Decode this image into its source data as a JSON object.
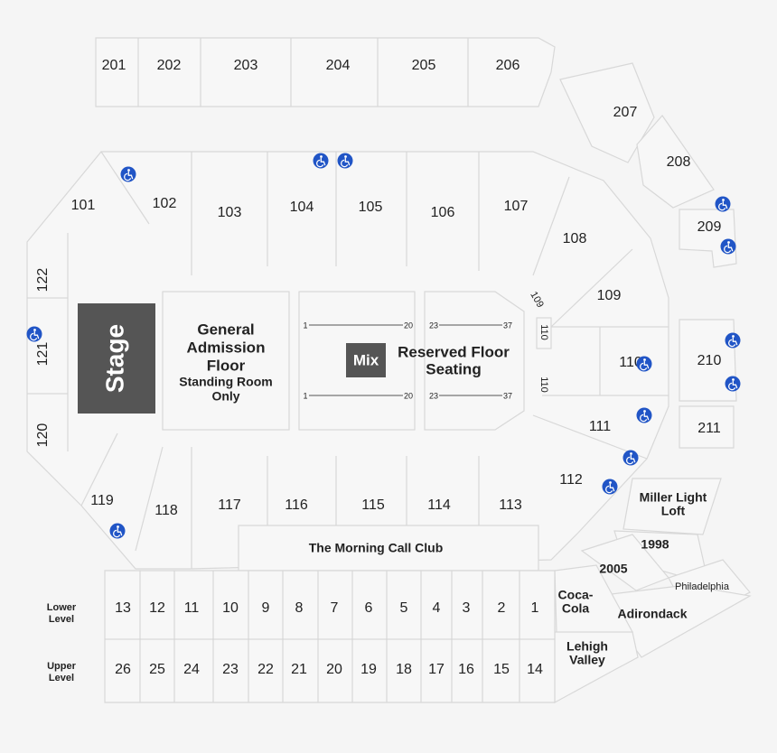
{
  "colors": {
    "accessible": "#2155c6",
    "stage": "#555555",
    "mix": "#555555",
    "section_fill": "#f7f7f7",
    "section_stroke": "#d8d8d8"
  },
  "stage": {
    "label": "Stage"
  },
  "mix": {
    "label": "Mix"
  },
  "general_admission": {
    "line1": "General",
    "line2": "Admission",
    "line3": "Floor",
    "sub1": "Standing Room",
    "sub2": "Only"
  },
  "reserved_floor": {
    "line1": "Reserved Floor",
    "line2": "Seating"
  },
  "row_numbers": {
    "left_start": "1",
    "left_end": "20",
    "right_start": "23",
    "right_end": "37"
  },
  "club": {
    "label": "The Morning Call Club"
  },
  "loft": {
    "line1": "Miller Light",
    "line2": "Loft"
  },
  "suites": {
    "s1998": "1998",
    "s2005": "2005",
    "philadelphia": "Philadelphia",
    "adirondack": "Adirondack",
    "coca1": "Coca-",
    "coca2": "Cola",
    "lehigh1": "Lehigh",
    "lehigh2": "Valley"
  },
  "levels": {
    "lower1": "Lower",
    "lower2": "Level",
    "upper1": "Upper",
    "upper2": "Level"
  },
  "upper_sections": [
    "201",
    "202",
    "203",
    "204",
    "205",
    "206",
    "207",
    "208",
    "209",
    "210",
    "211"
  ],
  "lower_sections": [
    "101",
    "102",
    "103",
    "104",
    "105",
    "106",
    "107",
    "108",
    "109",
    "110",
    "111",
    "112",
    "113",
    "114",
    "115",
    "116",
    "117",
    "118",
    "119",
    "120",
    "121",
    "122"
  ],
  "small_sections": {
    "s109": "109",
    "s110a": "110",
    "s110b": "110"
  },
  "lower_boxes": [
    "13",
    "12",
    "11",
    "10",
    "9",
    "8",
    "7",
    "6",
    "5",
    "4",
    "3",
    "2",
    "1"
  ],
  "upper_boxes": [
    "26",
    "25",
    "24",
    "23",
    "22",
    "21",
    "20",
    "19",
    "18",
    "17",
    "16",
    "15",
    "14"
  ],
  "accessible_icon": "wheelchair-icon"
}
